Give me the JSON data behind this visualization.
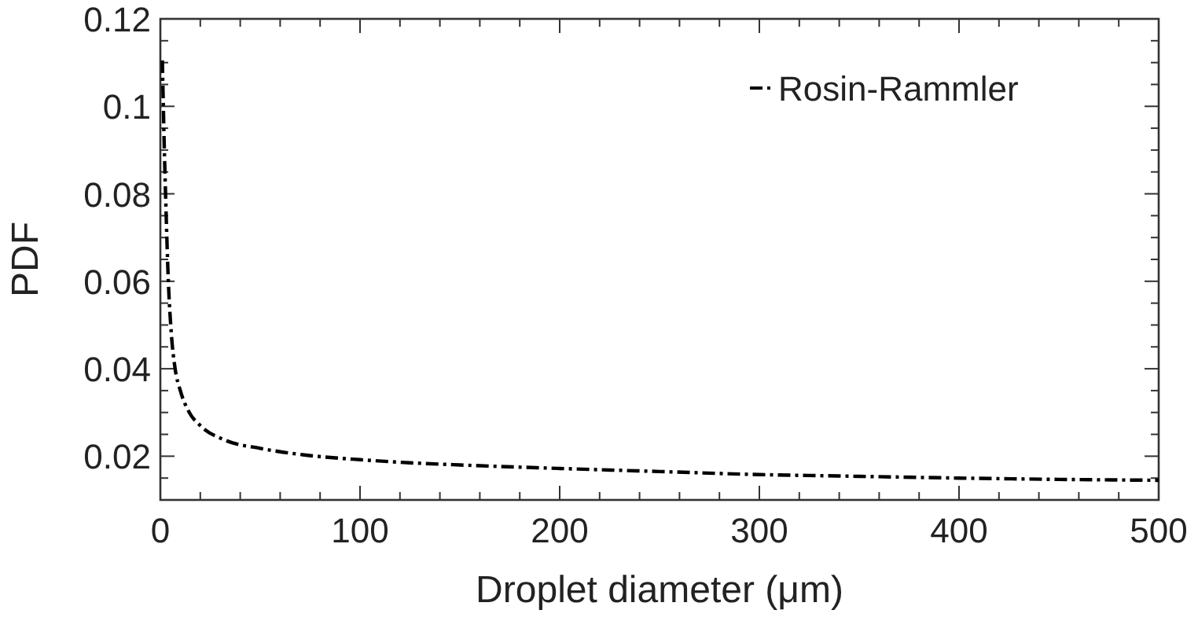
{
  "chart_data": {
    "type": "line",
    "xlabel": "Droplet diameter (μm)",
    "ylabel": "PDF",
    "xlim": [
      0,
      500
    ],
    "ylim": [
      0.01,
      0.12
    ],
    "xticks": [
      0,
      {
        "value": 20,
        "label": null
      },
      {
        "value": 40,
        "label": null
      },
      {
        "value": 60,
        "label": null
      },
      {
        "value": 80,
        "label": null
      },
      100,
      {
        "value": 120,
        "label": null
      },
      {
        "value": 140,
        "label": null
      },
      {
        "value": 160,
        "label": null
      },
      {
        "value": 180,
        "label": null
      },
      200,
      {
        "value": 220,
        "label": null
      },
      {
        "value": 240,
        "label": null
      },
      {
        "value": 260,
        "label": null
      },
      {
        "value": 280,
        "label": null
      },
      300,
      {
        "value": 320,
        "label": null
      },
      {
        "value": 340,
        "label": null
      },
      {
        "value": 360,
        "label": null
      },
      {
        "value": 380,
        "label": null
      },
      400,
      {
        "value": 420,
        "label": null
      },
      {
        "value": 440,
        "label": null
      },
      {
        "value": 460,
        "label": null
      },
      {
        "value": 480,
        "label": null
      },
      500
    ],
    "yticks": [
      {
        "value": 0.015,
        "label": null
      },
      0.02,
      {
        "value": 0.025,
        "label": null
      },
      {
        "value": 0.03,
        "label": null
      },
      {
        "value": 0.035,
        "label": null
      },
      0.04,
      {
        "value": 0.045,
        "label": null
      },
      {
        "value": 0.05,
        "label": null
      },
      {
        "value": 0.055,
        "label": null
      },
      0.06,
      {
        "value": 0.065,
        "label": null
      },
      {
        "value": 0.07,
        "label": null
      },
      {
        "value": 0.075,
        "label": null
      },
      0.08,
      {
        "value": 0.085,
        "label": null
      },
      {
        "value": 0.09,
        "label": null
      },
      {
        "value": 0.095,
        "label": null
      },
      0.1,
      {
        "value": 0.105,
        "label": null
      },
      {
        "value": 0.11,
        "label": null
      },
      {
        "value": 0.115,
        "label": null
      },
      0.12
    ],
    "grid": false,
    "legend": "top right",
    "line_style": "dashdot",
    "marker": "none",
    "series": [
      {
        "name": "Rosin-Rammler",
        "color": "#000000",
        "x": [
          1,
          2,
          2.6,
          4,
          5.5,
          7.4,
          10,
          14.5,
          20,
          32.8,
          50,
          72,
          100,
          125,
          150,
          200,
          250,
          300,
          350,
          400,
          450,
          500
        ],
        "values": [
          0.1105,
          0.09,
          0.08,
          0.06,
          0.048,
          0.04,
          0.035,
          0.03,
          0.027,
          0.0236,
          0.0218,
          0.0203,
          0.0192,
          0.0185,
          0.018,
          0.0172,
          0.0165,
          0.0158,
          0.0154,
          0.015,
          0.0147,
          0.0145
        ]
      }
    ]
  }
}
